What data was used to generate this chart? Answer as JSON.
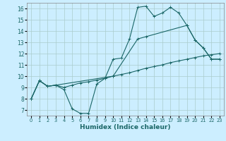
{
  "title": "",
  "xlabel": "Humidex (Indice chaleur)",
  "background_color": "#cceeff",
  "grid_color": "#aacccc",
  "line_color": "#1a6666",
  "xlim": [
    -0.5,
    23.5
  ],
  "ylim": [
    6.5,
    16.5
  ],
  "xticks": [
    0,
    1,
    2,
    3,
    4,
    5,
    6,
    7,
    8,
    9,
    10,
    11,
    12,
    13,
    14,
    15,
    16,
    17,
    18,
    19,
    20,
    21,
    22,
    23
  ],
  "yticks": [
    7,
    8,
    9,
    10,
    11,
    12,
    13,
    14,
    15,
    16
  ],
  "line1_x": [
    0,
    1,
    2,
    3,
    4,
    5,
    6,
    7,
    8,
    9,
    10,
    11,
    12,
    13,
    14,
    15,
    16,
    17,
    18,
    19,
    20,
    21,
    22,
    23
  ],
  "line1_y": [
    8.0,
    9.6,
    9.1,
    9.2,
    8.8,
    7.1,
    6.7,
    6.7,
    9.3,
    9.8,
    11.5,
    11.6,
    13.3,
    16.1,
    16.2,
    15.3,
    15.6,
    16.1,
    15.6,
    14.5,
    13.2,
    12.5,
    11.5,
    11.5
  ],
  "line2_x": [
    0,
    1,
    2,
    3,
    4,
    5,
    6,
    7,
    8,
    9,
    10,
    11,
    12,
    13,
    14,
    15,
    16,
    17,
    18,
    19,
    20,
    21,
    22,
    23
  ],
  "line2_y": [
    8.0,
    9.6,
    9.1,
    9.2,
    9.0,
    9.2,
    9.4,
    9.5,
    9.65,
    9.8,
    10.0,
    10.15,
    10.3,
    10.5,
    10.7,
    10.85,
    11.0,
    11.2,
    11.35,
    11.5,
    11.65,
    11.8,
    11.9,
    12.0
  ],
  "line3_x": [
    0,
    1,
    2,
    3,
    10,
    13,
    14,
    19,
    20,
    21,
    22,
    23
  ],
  "line3_y": [
    8.0,
    9.6,
    9.1,
    9.2,
    10.0,
    13.3,
    13.5,
    14.5,
    13.2,
    12.5,
    11.5,
    11.5
  ]
}
